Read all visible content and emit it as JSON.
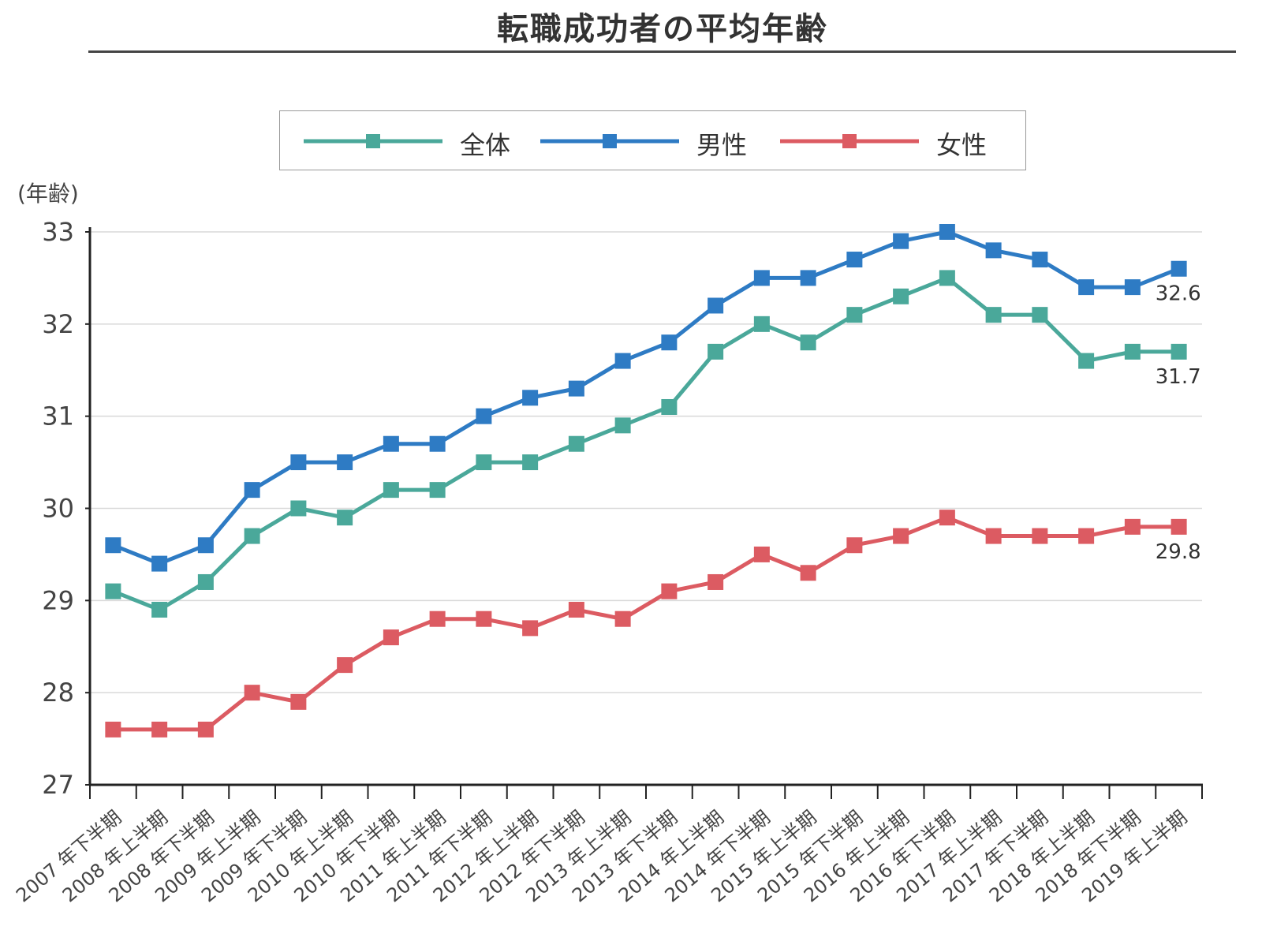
{
  "title": "転職成功者の平均年齢",
  "legend": {
    "items": [
      {
        "label": "全体",
        "color": "#4aa89a"
      },
      {
        "label": "男性",
        "color": "#2e7bc4"
      },
      {
        "label": "女性",
        "color": "#dc5b62"
      }
    ]
  },
  "chart_data": {
    "type": "line",
    "title": "転職成功者の平均年齢",
    "ylabel": "(年齢)",
    "xlabel": "",
    "ylim": [
      27,
      33
    ],
    "yticks": [
      27,
      28,
      29,
      30,
      31,
      32,
      33
    ],
    "grid": true,
    "legend_position": "top-center",
    "categories": [
      "2007 年下半期",
      "2008 年上半期",
      "2008 年下半期",
      "2009 年上半期",
      "2009 年下半期",
      "2010 年上半期",
      "2010 年下半期",
      "2011 年上半期",
      "2011 年下半期",
      "2012 年上半期",
      "2012 年下半期",
      "2013 年上半期",
      "2013 年下半期",
      "2014 年上半期",
      "2014 年下半期",
      "2015 年上半期",
      "2015 年下半期",
      "2016 年上半期",
      "2016 年下半期",
      "2017 年上半期",
      "2017 年下半期",
      "2018 年上半期",
      "2018 年下半期",
      "2019 年上半期"
    ],
    "series": [
      {
        "name": "全体",
        "color": "#4aa89a",
        "end_label": "31.7",
        "values": [
          29.1,
          28.9,
          29.2,
          29.7,
          30.0,
          29.9,
          30.2,
          30.2,
          30.5,
          30.5,
          30.7,
          30.9,
          31.1,
          31.7,
          32.0,
          31.8,
          32.1,
          32.3,
          32.5,
          32.1,
          32.1,
          31.6,
          31.7,
          31.7
        ]
      },
      {
        "name": "男性",
        "color": "#2e7bc4",
        "end_label": "32.6",
        "values": [
          29.6,
          29.4,
          29.6,
          30.2,
          30.5,
          30.5,
          30.7,
          30.7,
          31.0,
          31.2,
          31.3,
          31.6,
          31.8,
          32.2,
          32.5,
          32.5,
          32.7,
          32.9,
          33.0,
          32.8,
          32.7,
          32.4,
          32.4,
          32.6
        ]
      },
      {
        "name": "女性",
        "color": "#dc5b62",
        "end_label": "29.8",
        "values": [
          27.6,
          27.6,
          27.6,
          28.0,
          27.9,
          28.3,
          28.6,
          28.8,
          28.8,
          28.7,
          28.9,
          28.8,
          29.1,
          29.2,
          29.5,
          29.3,
          29.6,
          29.7,
          29.9,
          29.7,
          29.7,
          29.7,
          29.8,
          29.8
        ]
      }
    ]
  }
}
